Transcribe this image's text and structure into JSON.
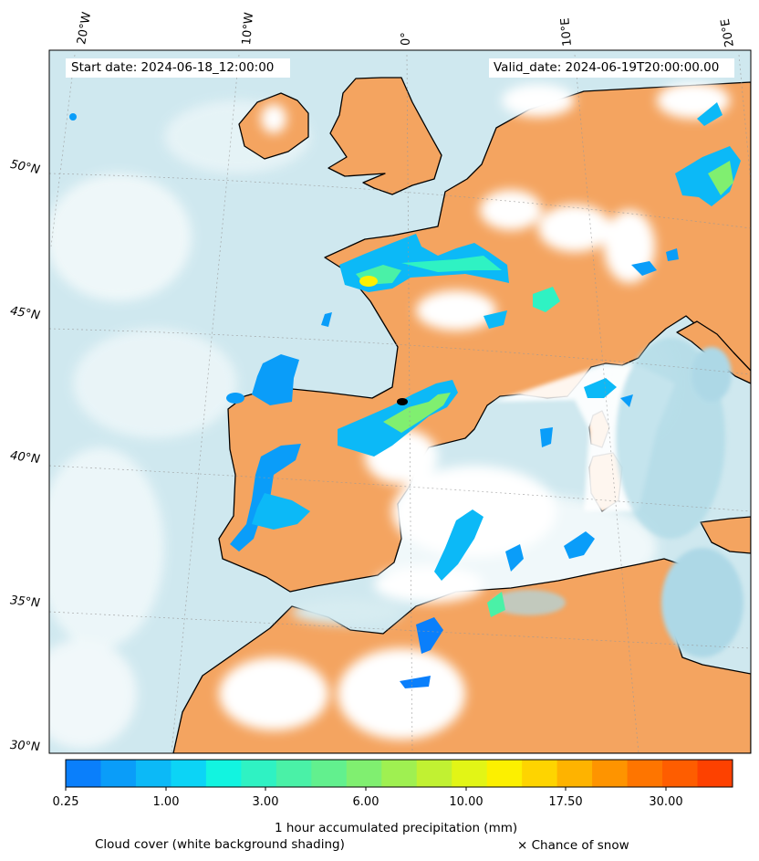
{
  "header": {
    "start_date": "Start date: 2024-06-18_12:00:00",
    "valid_date": "Valid_date: 2024-06-19T20:00:00.00"
  },
  "axes": {
    "longitude_labels": [
      "20°W",
      "10°W",
      "0°",
      "10°E",
      "20°E"
    ],
    "latitude_labels": [
      "50°N",
      "45°N",
      "40°N",
      "35°N",
      "30°N"
    ]
  },
  "colorbar": {
    "label": "1 hour accumulated precipitation (mm)",
    "tick_labels": [
      "0.25",
      "1.00",
      "3.00",
      "6.00",
      "10.00",
      "17.50",
      "30.00"
    ],
    "colors": [
      "#0a7ffb",
      "#0a9df9",
      "#0cb9f7",
      "#0cd4f6",
      "#12f4e0",
      "#2ff2c3",
      "#4af1a7",
      "#62f08e",
      "#80ef70",
      "#9ff051",
      "#c1f132",
      "#e2f516",
      "#fcf000",
      "#fed400",
      "#feb300",
      "#fe9400",
      "#fe7500",
      "#fe5d00",
      "#fd4100"
    ]
  },
  "legend": {
    "cloud_cover": "Cloud cover (white background shading)",
    "snow": "× Chance of snow"
  },
  "palette": {
    "land_dry": "#f4a460",
    "sea_clear": "#add8e6",
    "cloud": "#ffffff",
    "coastline": "#000000"
  }
}
